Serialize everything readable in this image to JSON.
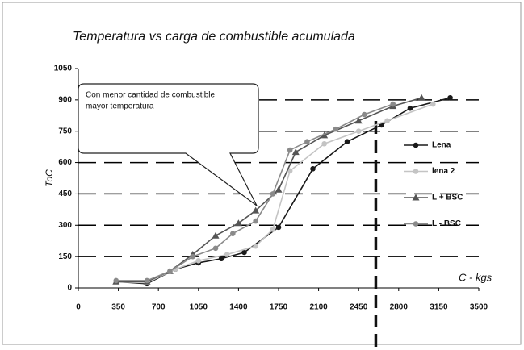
{
  "chart_data": {
    "type": "line",
    "title": "Temperatura vs carga de combustible acumulada",
    "y_label": "ToC",
    "x_label": "C - kgs",
    "annotation": [
      "Con menor cantidad de combustible",
      "mayor temperatura"
    ],
    "vline": 2600,
    "xlim": [
      0,
      3500
    ],
    "xticks": [
      0,
      350,
      700,
      1050,
      1400,
      1750,
      2100,
      2450,
      2800,
      3150,
      3500
    ],
    "ylim": [
      0,
      1050
    ],
    "yticks": [
      0,
      150,
      300,
      450,
      600,
      750,
      900,
      1050
    ],
    "grid": true,
    "legend": "right",
    "series": [
      {
        "name": "Lena",
        "color": "#1a1a1a",
        "marker": "circle",
        "x": [
          330,
          600,
          850,
          1050,
          1250,
          1450,
          1750,
          2050,
          2350,
          2650,
          2900,
          3250
        ],
        "values": [
          30,
          20,
          90,
          120,
          140,
          170,
          290,
          570,
          700,
          780,
          860,
          910
        ]
      },
      {
        "name": "lena 2",
        "color": "#c4c4c4",
        "marker": "circle",
        "x": [
          330,
          600,
          850,
          1050,
          1300,
          1550,
          1700,
          1850,
          2150,
          2450,
          2700,
          3100
        ],
        "values": [
          30,
          25,
          90,
          130,
          160,
          200,
          280,
          560,
          690,
          750,
          800,
          880
        ]
      },
      {
        "name": "L + BSC",
        "color": "#555555",
        "marker": "triangle",
        "x": [
          330,
          600,
          800,
          1000,
          1200,
          1400,
          1550,
          1750,
          1900,
          2150,
          2450,
          2750,
          3000
        ],
        "values": [
          30,
          30,
          80,
          160,
          250,
          310,
          370,
          470,
          650,
          730,
          800,
          870,
          910
        ]
      },
      {
        "name": "L - BSC",
        "color": "#8a8a8a",
        "marker": "circle",
        "x": [
          330,
          600,
          800,
          1000,
          1200,
          1350,
          1550,
          1700,
          1850,
          2000,
          2250,
          2500,
          2750
        ],
        "values": [
          35,
          35,
          80,
          150,
          190,
          260,
          320,
          450,
          660,
          700,
          760,
          830,
          880
        ]
      }
    ]
  }
}
